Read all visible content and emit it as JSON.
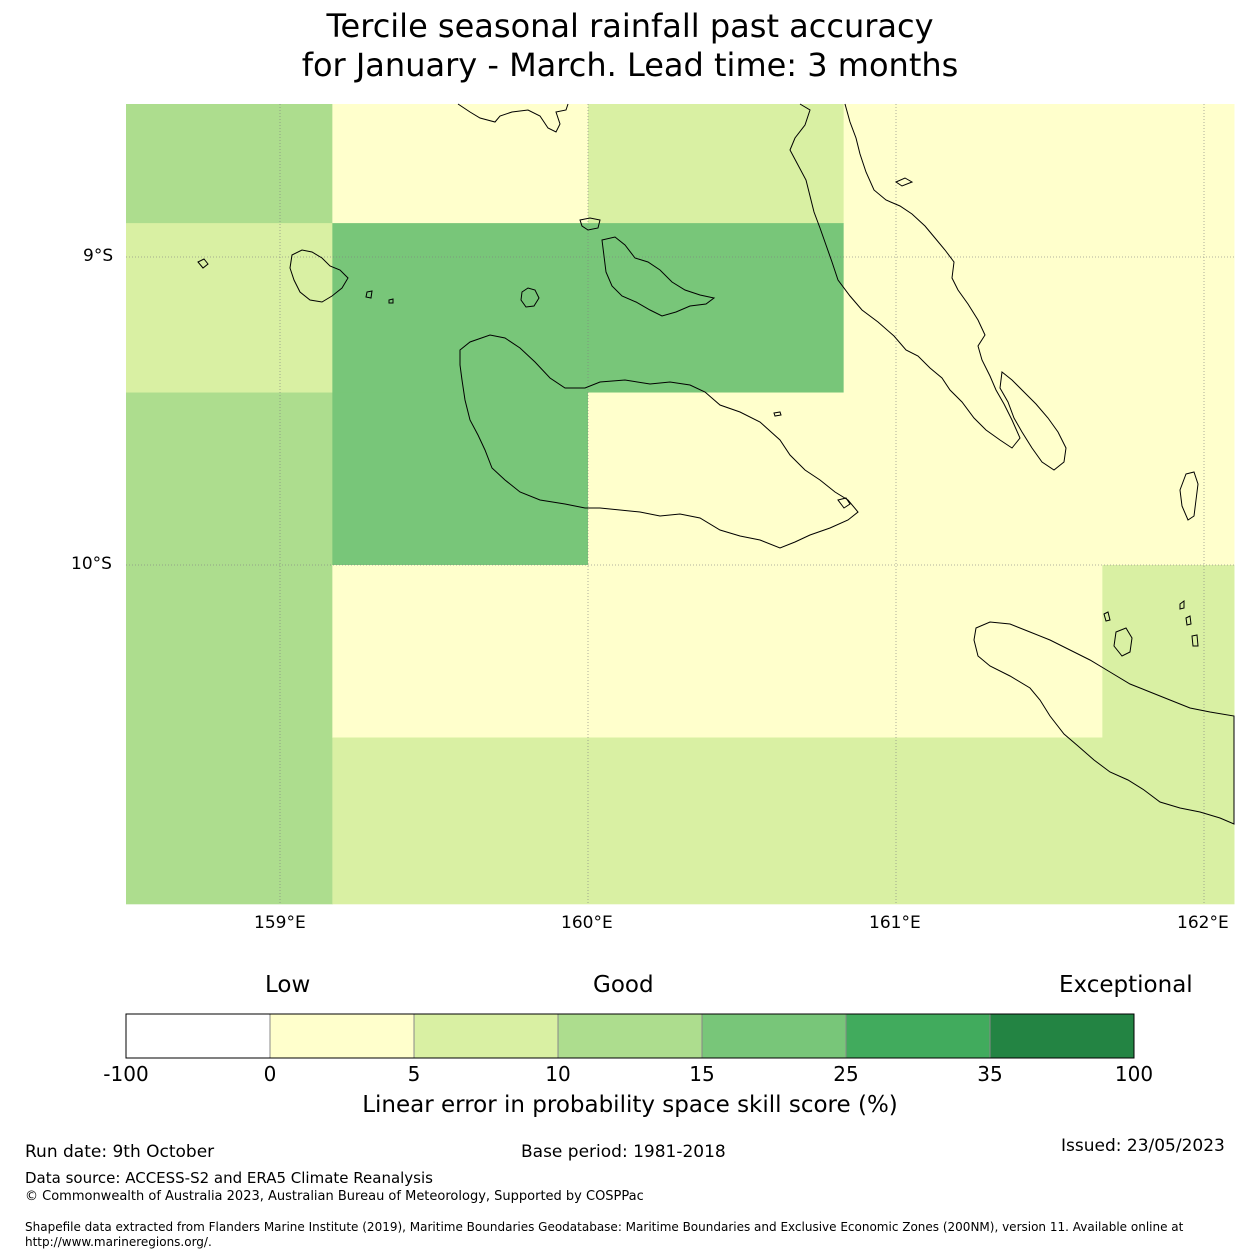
{
  "title": {
    "line1": "Tercile seasonal rainfall past accuracy",
    "line2": "for January - March. Lead time: 3 months"
  },
  "map": {
    "lat_ticks": [
      "9°S",
      "10°S"
    ],
    "lon_ticks": [
      "159°E",
      "160°E",
      "161°E",
      "162°E"
    ],
    "cells": [
      {
        "lon": [
          158.5,
          159.17
        ],
        "lat": [
          -8.5,
          -8.89
        ],
        "value": 12
      },
      {
        "lon": [
          159.17,
          160.0
        ],
        "lat": [
          -8.5,
          -8.89
        ],
        "value": 2
      },
      {
        "lon": [
          160.0,
          160.83
        ],
        "lat": [
          -8.5,
          -8.89
        ],
        "value": 7
      },
      {
        "lon": [
          160.83,
          162.1
        ],
        "lat": [
          -8.5,
          -8.89
        ],
        "value": 2
      },
      {
        "lon": [
          158.5,
          159.17
        ],
        "lat": [
          -8.89,
          -9.44
        ],
        "value": 7
      },
      {
        "lon": [
          159.17,
          160.83
        ],
        "lat": [
          -8.89,
          -9.44
        ],
        "value": 20
      },
      {
        "lon": [
          160.83,
          162.1
        ],
        "lat": [
          -8.89,
          -9.44
        ],
        "value": 2
      },
      {
        "lon": [
          158.5,
          159.17
        ],
        "lat": [
          -9.44,
          -10.0
        ],
        "value": 12
      },
      {
        "lon": [
          159.17,
          160.0
        ],
        "lat": [
          -9.44,
          -10.0
        ],
        "value": 20
      },
      {
        "lon": [
          160.0,
          162.1
        ],
        "lat": [
          -9.44,
          -10.0
        ],
        "value": 2
      },
      {
        "lon": [
          158.5,
          159.17
        ],
        "lat": [
          -10.0,
          -11.1
        ],
        "value": 12
      },
      {
        "lon": [
          159.17,
          161.67
        ],
        "lat": [
          -10.0,
          -10.56
        ],
        "value": 2
      },
      {
        "lon": [
          161.67,
          162.1
        ],
        "lat": [
          -10.0,
          -10.56
        ],
        "value": 7
      },
      {
        "lon": [
          159.17,
          162.1
        ],
        "lat": [
          -10.56,
          -11.1
        ],
        "value": 7
      }
    ]
  },
  "colorbar": {
    "words": {
      "low": "Low",
      "good": "Good",
      "exceptional": "Exceptional"
    },
    "ticks": [
      "-100",
      "0",
      "5",
      "10",
      "15",
      "25",
      "35",
      "100"
    ],
    "colors": [
      "#ffffff",
      "#ffffcc",
      "#d9f0a3",
      "#addd8e",
      "#78c679",
      "#41ab5d",
      "#238443"
    ],
    "label": "Linear error in probability space skill score (%)"
  },
  "footer": {
    "run_date": "Run date: 9th October",
    "base_period": "Base period: 1981-2018",
    "issued": "Issued: 23/05/2023",
    "data_source": "Data source: ACCESS-S2 and ERA5 Climate Reanalysis",
    "copyright": "© Commonwealth of Australia 2023, Australian Bureau of Meteorology, Supported by COSPPac",
    "shapefile": "Shapefile data extracted from Flanders Marine Institute (2019), Maritime Boundaries Geodatabase: Maritime Boundaries and Exclusive Economic Zones (200NM), version 11. Available online at http://www.marineregions.org/."
  }
}
